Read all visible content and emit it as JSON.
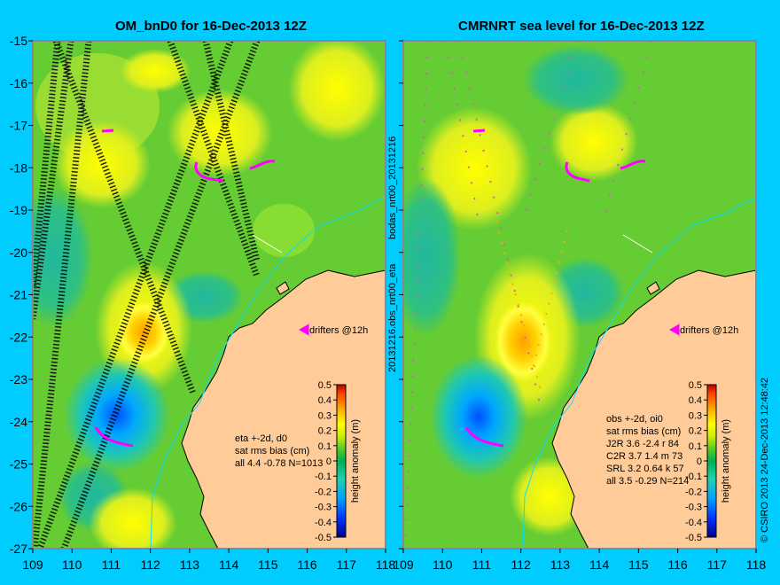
{
  "left_panel": {
    "title": "OM_bnD0 for 16-Dec-2013 12Z",
    "stats_lines": [
      "eta +-2d, d0",
      "sat rms bias (cm)",
      "all 4.4 -0.78 N=1013"
    ],
    "drifters_label": "drifters @12h"
  },
  "right_panel": {
    "title": "CMRNRT sea level  for 16-Dec-2013 12Z",
    "stats_lines": [
      "obs +-2d, oi0",
      "sat rms bias (cm)",
      "J2R   3.6 -2.4 r 84",
      "C2R   3.7 1.4 m 73",
      "SRL   3.2 0.64 k 57",
      "all   3.5 -0.29 N=214"
    ],
    "drifters_label": "drifters @12h"
  },
  "side_labels": {
    "bodas": "bodas_nrt00_20131216",
    "obs": "20131216.obs_nrt00_eta",
    "copyright": "© CSIRO 2013   24-Dec-2013 12:48:42"
  },
  "axes": {
    "lon_ticks": [
      "109",
      "110",
      "111",
      "112",
      "113",
      "114",
      "115",
      "116",
      "117",
      "118"
    ],
    "lat_ticks": [
      "-15",
      "-16",
      "-17",
      "-18",
      "-19",
      "-20",
      "-21",
      "-22",
      "-23",
      "-24",
      "-25",
      "-26",
      "-27"
    ]
  },
  "colorbar": {
    "label": "height anomaly (m)",
    "ticks": [
      "0.5",
      "0.4",
      "0.3",
      "0.2",
      "0.1",
      "0",
      "-0.1",
      "-0.2",
      "-0.3",
      "-0.4",
      "-0.5"
    ],
    "colors": [
      "#00008f",
      "#0040ff",
      "#00a0ff",
      "#20d0c0",
      "#00b050",
      "#33cc33",
      "#99dd22",
      "#ffff00",
      "#ffbb00",
      "#ff6600",
      "#cc0000"
    ]
  },
  "colors": {
    "background": "#00ccff",
    "land": "#ffcc99",
    "drifter": "#ff00ff",
    "coast_line": "#00e0ff"
  }
}
